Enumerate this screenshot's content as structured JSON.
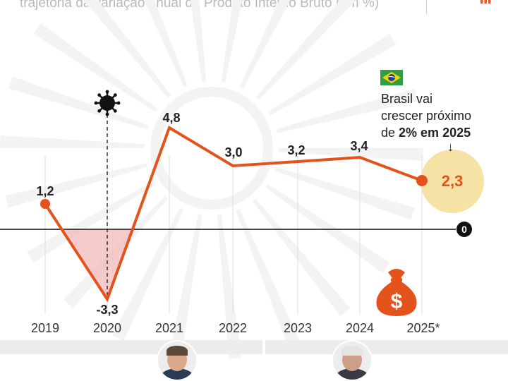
{
  "header": {
    "subtitle": "trajetória da variação anual do Produto Interno Bruto (em %)"
  },
  "annotation": {
    "line1": "Brasil vai",
    "line2": "crescer próximo",
    "line3_prefix": "de ",
    "line3_bold": "2% em 2025",
    "flag_icon": "brazil-flag-icon",
    "arrow_icon": "arrow-down-icon"
  },
  "icons": {
    "virus": "coronavirus-icon",
    "money": "money-bag-icon",
    "arrow": "arrow-right-icon"
  },
  "colors": {
    "line": "#e4531c",
    "negative_fill": "#f2b9bb",
    "forecast_highlight": "#f7e2a6",
    "baseline": "#111111",
    "label": "#222222"
  },
  "chart_data": {
    "type": "line",
    "title": "",
    "xlabel": "",
    "ylabel": "",
    "categories": [
      "2019",
      "2020",
      "2021",
      "2022",
      "2023",
      "2024",
      "2025*"
    ],
    "values": [
      1.2,
      -3.3,
      4.8,
      3.0,
      3.2,
      3.4,
      2.3
    ],
    "value_labels": [
      "1,2",
      "-3,3",
      "4,8",
      "3,0",
      "3,2",
      "3,4",
      "2,3"
    ],
    "baseline_label": "0",
    "ylim": [
      -4.5,
      6
    ],
    "grid": "vertical",
    "forecast_category": "2025*",
    "event_marker_category": "2020"
  }
}
